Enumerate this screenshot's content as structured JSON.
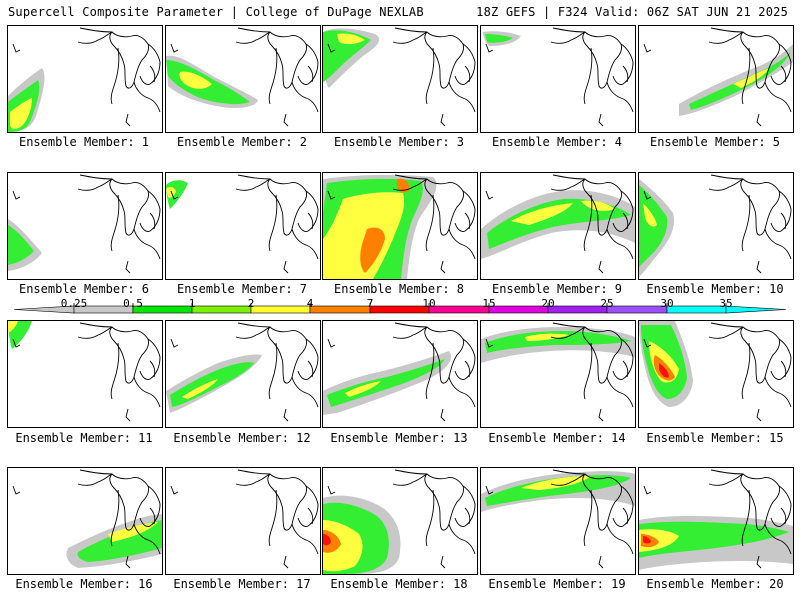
{
  "header": {
    "left": "Supercell Composite Parameter | College of DuPage NEXLAB",
    "right": "18Z GEFS | F324 Valid: 06Z SAT JUN 21 2025"
  },
  "colorbar": {
    "ticks": [
      "0.25",
      "0.5",
      "1",
      "2",
      "4",
      "7",
      "10",
      "15",
      "20",
      "25",
      "30",
      "35"
    ],
    "colors": [
      "#c8c8c8",
      "#00e600",
      "#7bf000",
      "#ffff30",
      "#ff7f00",
      "#ff0000",
      "#ff0090",
      "#e000e0",
      "#a020f0",
      "#9a50ff",
      "#00ffff"
    ]
  },
  "map_colors": {
    "gray": "#c8c8c8",
    "green": "#33ee33",
    "yellow": "#ffff40",
    "orange": "#ff8000",
    "red": "#ff1010"
  },
  "panels": [
    {
      "caption": "Ensemble Member: 1"
    },
    {
      "caption": "Ensemble Member: 2"
    },
    {
      "caption": "Ensemble Member: 3"
    },
    {
      "caption": "Ensemble Member: 4"
    },
    {
      "caption": "Ensemble Member: 5"
    },
    {
      "caption": "Ensemble Member: 6"
    },
    {
      "caption": "Ensemble Member: 7"
    },
    {
      "caption": "Ensemble Member: 8"
    },
    {
      "caption": "Ensemble Member: 9"
    },
    {
      "caption": "Ensemble Member: 10"
    },
    {
      "caption": "Ensemble Member: 11"
    },
    {
      "caption": "Ensemble Member: 12"
    },
    {
      "caption": "Ensemble Member: 13"
    },
    {
      "caption": "Ensemble Member: 14"
    },
    {
      "caption": "Ensemble Member: 15"
    },
    {
      "caption": "Ensemble Member: 16"
    },
    {
      "caption": "Ensemble Member: 17"
    },
    {
      "caption": "Ensemble Member: 18"
    },
    {
      "caption": "Ensemble Member: 19"
    },
    {
      "caption": "Ensemble Member: 20"
    }
  ]
}
